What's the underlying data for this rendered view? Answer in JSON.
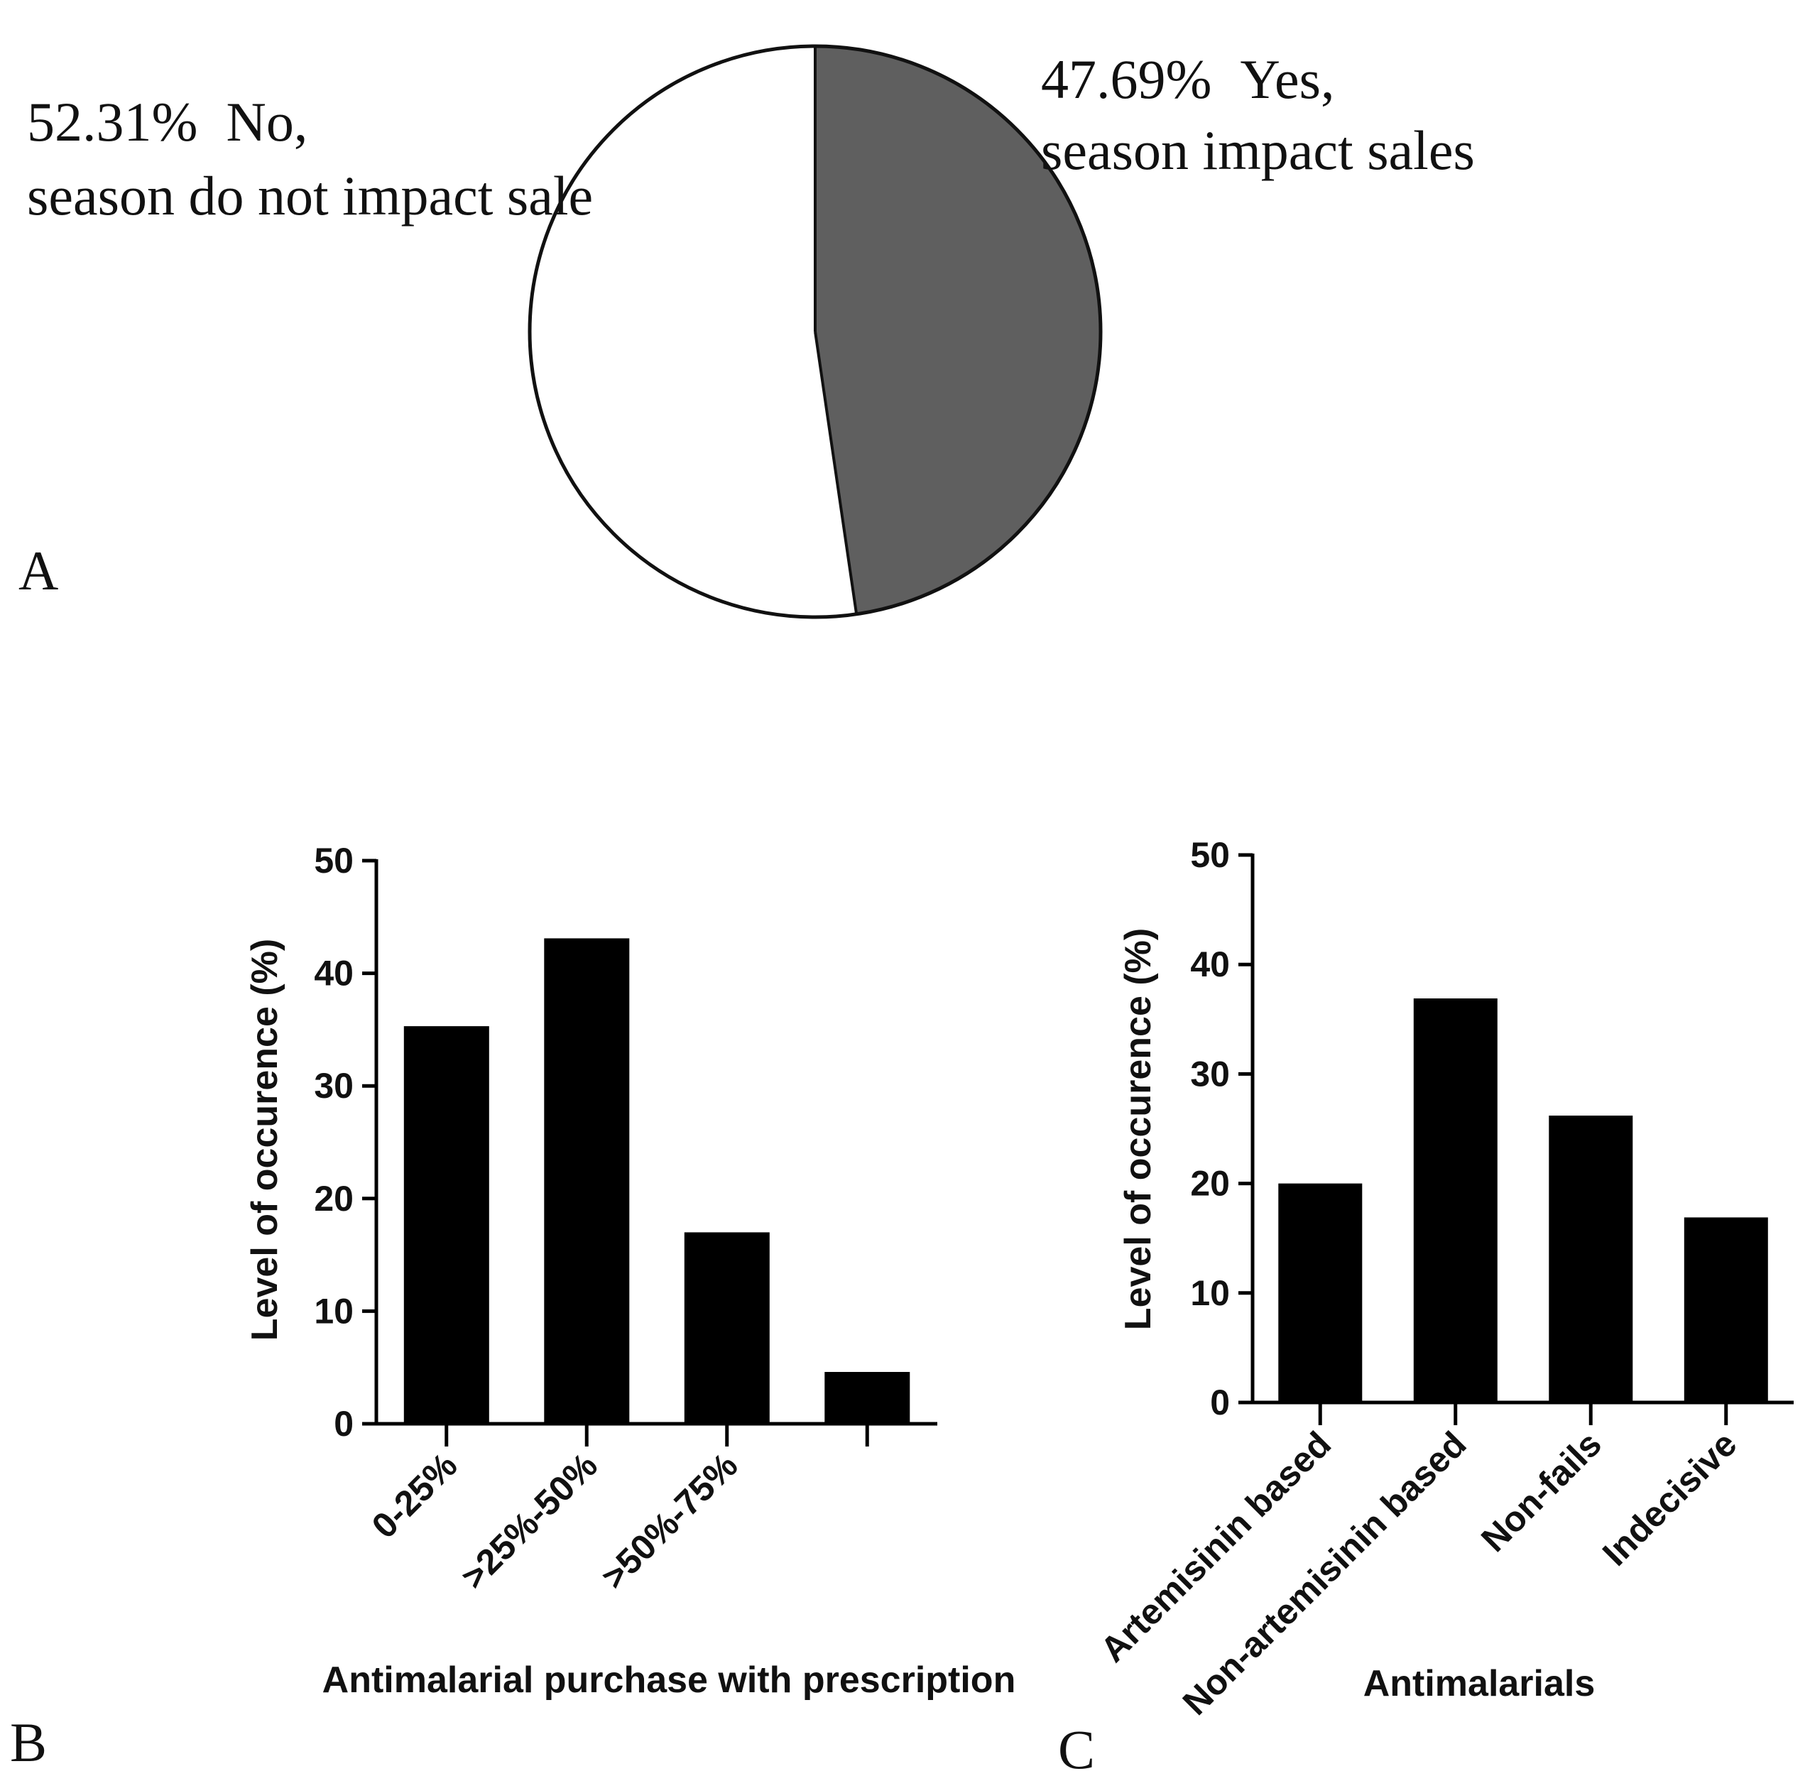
{
  "panels": {
    "a": {
      "letter": "A"
    },
    "b": {
      "letter": "B"
    },
    "c": {
      "letter": "C"
    }
  },
  "chart_data": [
    {
      "id": "A",
      "type": "pie",
      "slices": [
        {
          "name": "Yes",
          "value": 47.69,
          "pct_label": "47.69%",
          "answer": "Yes,",
          "description": "season impact sales",
          "color": "#5f5f5f"
        },
        {
          "name": "No",
          "value": 52.31,
          "pct_label": "52.31%",
          "answer": "No,",
          "description": "season do not impact sale",
          "color": "#ffffff"
        }
      ],
      "edge_color": "#111111"
    },
    {
      "id": "B",
      "type": "bar",
      "title": "",
      "xlabel": "Antimalarial purchase with prescription",
      "ylabel": "Level of occurence (%)",
      "categories": [
        "0-25%",
        ">25%-50%",
        ">50%-75%",
        ""
      ],
      "values": [
        35.3,
        43.1,
        17.0,
        4.6
      ],
      "ylim": [
        0,
        50
      ],
      "yticks": [
        0,
        10,
        20,
        30,
        40,
        50
      ],
      "bar_color": "#000000"
    },
    {
      "id": "C",
      "type": "bar",
      "title": "",
      "xlabel": "Antimalarials",
      "ylabel": "Level of occurence (%)",
      "categories": [
        "Artemisinin based",
        "Non-artemisinin based",
        "Non-fails",
        "Indecisive"
      ],
      "values": [
        20.0,
        36.9,
        26.2,
        16.9
      ],
      "ylim": [
        0,
        50
      ],
      "yticks": [
        0,
        10,
        20,
        30,
        40,
        50
      ],
      "bar_color": "#000000"
    }
  ]
}
